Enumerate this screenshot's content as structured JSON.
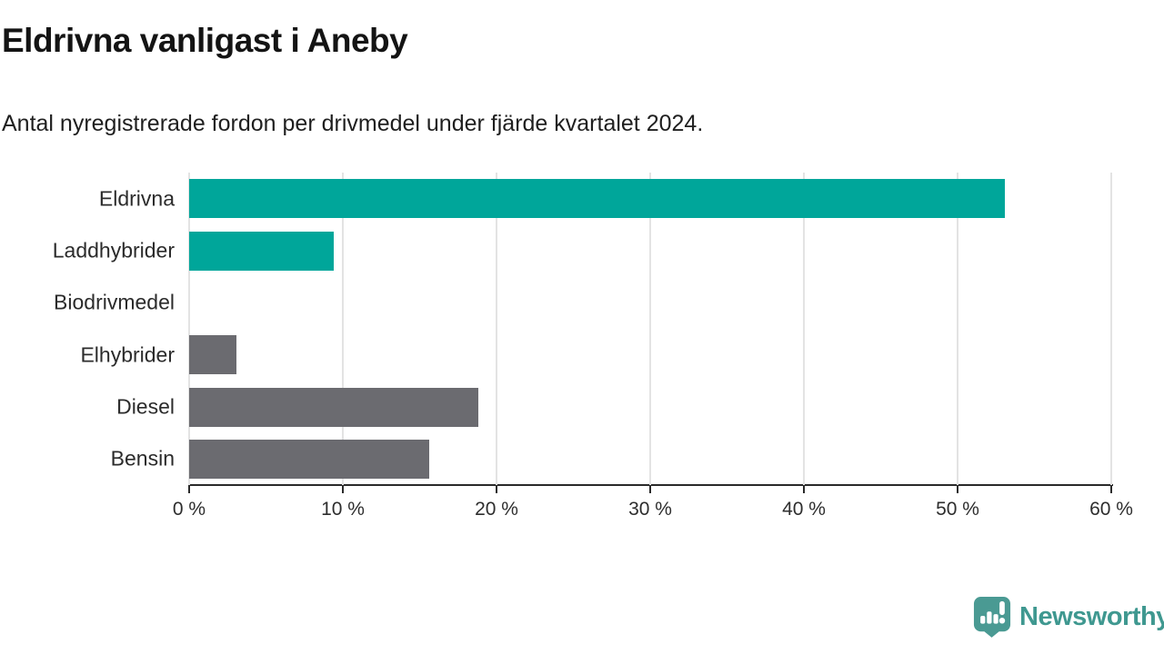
{
  "header": {
    "title": "Eldrivna vanligast i Aneby",
    "subtitle": "Antal nyregistrerade fordon per drivmedel under fjärde kvartalet 2024."
  },
  "chart_data": {
    "type": "bar",
    "orientation": "horizontal",
    "title": "Eldrivna vanligast i Aneby",
    "subtitle": "Antal nyregistrerade fordon per drivmedel under fjärde kvartalet 2024.",
    "categories": [
      "Eldrivna",
      "Laddhybrider",
      "Biodrivmedel",
      "Elhybrider",
      "Diesel",
      "Bensin"
    ],
    "values": [
      53.1,
      9.4,
      0,
      3.1,
      18.8,
      15.6
    ],
    "unit": "%",
    "xlabel": "",
    "ylabel": "",
    "xlim": [
      0,
      60
    ],
    "x_tick_values": [
      0,
      10,
      20,
      30,
      40,
      50,
      60
    ],
    "x_tick_labels": [
      "0 %",
      "10 %",
      "20 %",
      "30 %",
      "40 %",
      "50 %",
      "60 %"
    ],
    "grid": true,
    "legend_position": "none",
    "colors": {
      "highlight": "#00a69a",
      "default": "#6b6b70",
      "bar_colors": [
        "#00a69a",
        "#00a69a",
        "#00a69a",
        "#6b6b70",
        "#6b6b70",
        "#6b6b70"
      ],
      "gridline": "#e3e3e3",
      "axis": "#2a2a2a"
    }
  },
  "footer": {
    "brand": "Newsworthy",
    "brand_color": "#3f9890",
    "logo_icon": "bar-chart-speech-bubble-icon"
  }
}
